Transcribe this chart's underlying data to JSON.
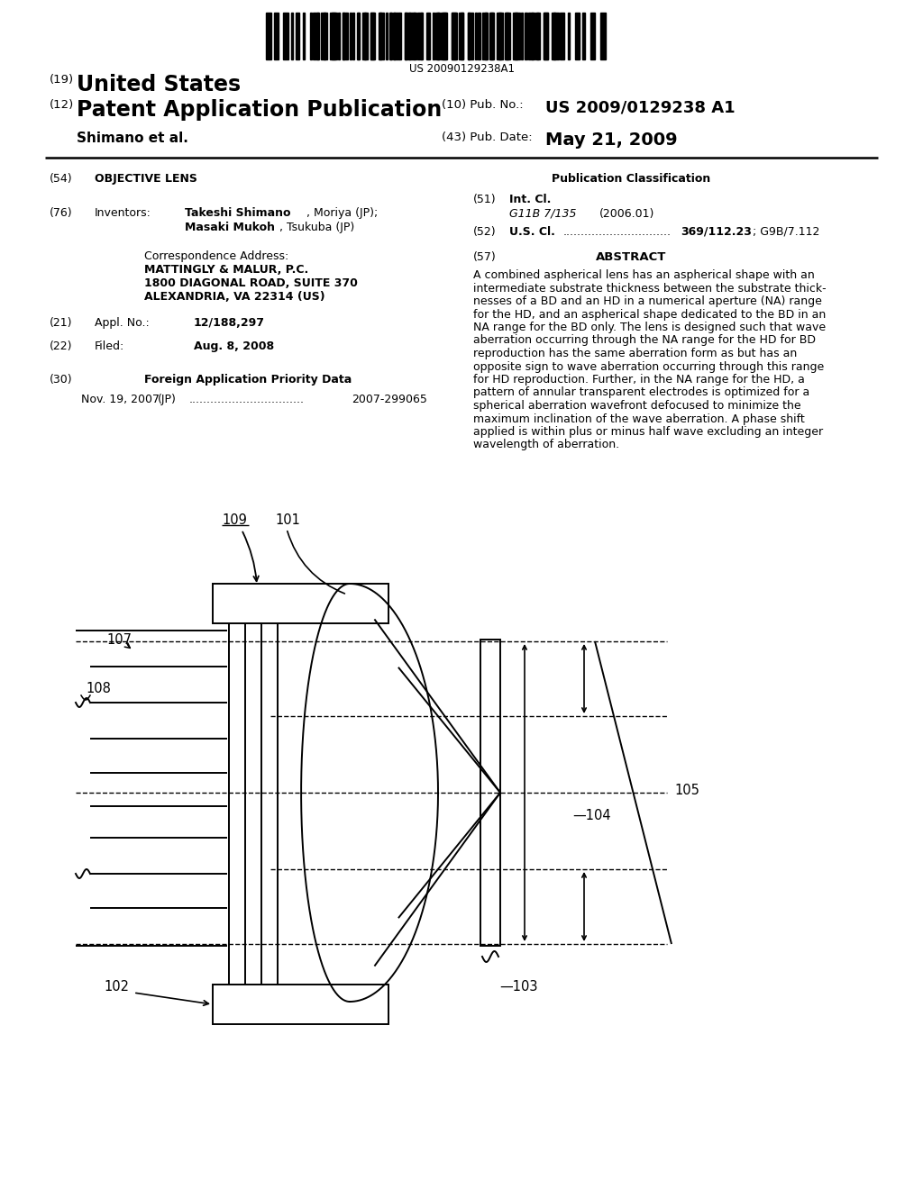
{
  "barcode_text": "US 20090129238A1",
  "header_19": "(19)",
  "header_19_text": "United States",
  "header_12": "(12)",
  "header_12_text": "Patent Application Publication",
  "header_author": "Shimano et al.",
  "pub_no_prefix": "(10) Pub. No.:",
  "pub_no": "US 2009/0129238 A1",
  "pub_date_prefix": "(43) Pub. Date:",
  "pub_date": "May 21, 2009",
  "s54_num": "(54)",
  "s54_title": "OBJECTIVE LENS",
  "s76_num": "(76)",
  "s76_label": "Inventors:",
  "inventor1_bold": "Takeshi Shimano",
  "inventor1_rest": ", Moriya (JP);",
  "inventor2_bold": "Masaki Mukoh",
  "inventor2_rest": ", Tsukuba (JP)",
  "corr_label": "Correspondence Address:",
  "corr1": "MATTINGLY & MALUR, P.C.",
  "corr2": "1800 DIAGONAL ROAD, SUITE 370",
  "corr3": "ALEXANDRIA, VA 22314 (US)",
  "s21_num": "(21)",
  "s21_label": "Appl. No.:",
  "s21_val": "12/188,297",
  "s22_num": "(22)",
  "s22_label": "Filed:",
  "s22_val": "Aug. 8, 2008",
  "s30_num": "(30)",
  "s30_title": "Foreign Application Priority Data",
  "foreign_date": "Nov. 19, 2007",
  "foreign_country": "(JP)",
  "foreign_dots": "................................",
  "foreign_num": "2007-299065",
  "pub_class_title": "Publication Classification",
  "s51_num": "(51)",
  "s51_label": "Int. Cl.",
  "s51_class": "G11B 7/135",
  "s51_year": "(2006.01)",
  "s52_num": "(52)",
  "s52_label": "U.S. Cl.",
  "s52_dots": "..............................",
  "s52_val_bold": "369/112.23",
  "s52_val_rest": "; G9B/7.112",
  "s57_num": "(57)",
  "s57_title": "ABSTRACT",
  "abstract": "A combined aspherical lens has an aspherical shape with an intermediate substrate thickness between the substrate thick-nesses of a BD and an HD in a numerical aperture (NA) range for the HD, and an aspherical shape dedicated to the BD in an NA range for the BD only. The lens is designed such that wave aberration occurring through the NA range for the HD for BD reproduction has the same aberration form as but has an opposite sign to wave aberration occurring through this range for HD reproduction. Further, in the NA range for the HD, a pattern of annular transparent electrodes is optimized for a spherical aberration wavefront defocused to minimize the maximum inclination of the wave aberration. A phase shift applied is within plus or minus half wave excluding an integer wavelength of aberration.",
  "bg": "#ffffff",
  "fg": "#000000",
  "label_101": "101",
  "label_102": "102",
  "label_103": "103",
  "label_104": "104",
  "label_105": "105",
  "label_107": "107",
  "label_108": "108",
  "label_109": "109"
}
